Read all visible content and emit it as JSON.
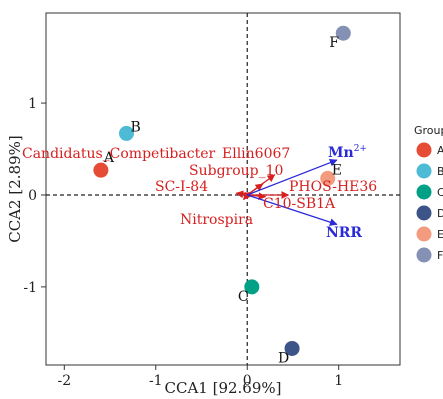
{
  "chart_data": {
    "type": "scatter",
    "xlabel": "CCA1 [92.69%]",
    "ylabel": "CCA2 [2.89%]",
    "xlim": [
      -2.2,
      1.67
    ],
    "ylim": [
      -1.85,
      1.98
    ],
    "xticks": [
      -2,
      -1,
      0,
      1
    ],
    "yticks": [
      -1,
      0,
      1
    ],
    "xtick_labels": [
      "-2",
      "-1",
      "0",
      "1"
    ],
    "ytick_labels": [
      "-1",
      "0",
      "1"
    ],
    "reference_lines": {
      "x": 0,
      "y": 0,
      "style": "dashed"
    },
    "legend": {
      "title": "Group",
      "placement": "right",
      "entries": [
        {
          "name": "A",
          "color": "#e64b35"
        },
        {
          "name": "B",
          "color": "#4dbbd5"
        },
        {
          "name": "C",
          "color": "#00a087"
        },
        {
          "name": "D",
          "color": "#3c5488"
        },
        {
          "name": "E",
          "color": "#f39b7f"
        },
        {
          "name": "F",
          "color": "#8491b4"
        }
      ]
    },
    "points": [
      {
        "label": "A",
        "x": -1.6,
        "y": 0.27,
        "color": "#e64b35"
      },
      {
        "label": "B",
        "x": -1.32,
        "y": 0.67,
        "color": "#4dbbd5"
      },
      {
        "label": "C",
        "x": 0.05,
        "y": -1.0,
        "color": "#00a087"
      },
      {
        "label": "D",
        "x": 0.49,
        "y": -1.67,
        "color": "#3c5488"
      },
      {
        "label": "E",
        "x": 0.88,
        "y": 0.18,
        "color": "#f39b7f"
      },
      {
        "label": "F",
        "x": 1.05,
        "y": 1.76,
        "color": "#8491b4"
      }
    ],
    "taxa_arrows": [
      {
        "label": "Candidatus_Competibacter",
        "x": -0.05,
        "y": 0.02
      },
      {
        "label": "Ellin6067",
        "x": 0.3,
        "y": 0.22
      },
      {
        "label": "Subgroup_10",
        "x": 0.17,
        "y": 0.12
      },
      {
        "label": "SC-I-84",
        "x": -0.12,
        "y": 0.02
      },
      {
        "label": "PHOS-HE36",
        "x": 0.45,
        "y": 0.0
      },
      {
        "label": "C10-SB1A",
        "x": 0.2,
        "y": -0.02
      },
      {
        "label": "Nitrospira",
        "x": -0.04,
        "y": -0.05
      }
    ],
    "env_arrows": [
      {
        "label": "Mn",
        "superscript": "2+",
        "x": 0.98,
        "y": 0.38
      },
      {
        "label": "NRR",
        "x": 0.98,
        "y": -0.32
      }
    ],
    "colors": {
      "taxa": "#d62020",
      "env": "#2a2ad6",
      "axis": "#333333"
    }
  }
}
